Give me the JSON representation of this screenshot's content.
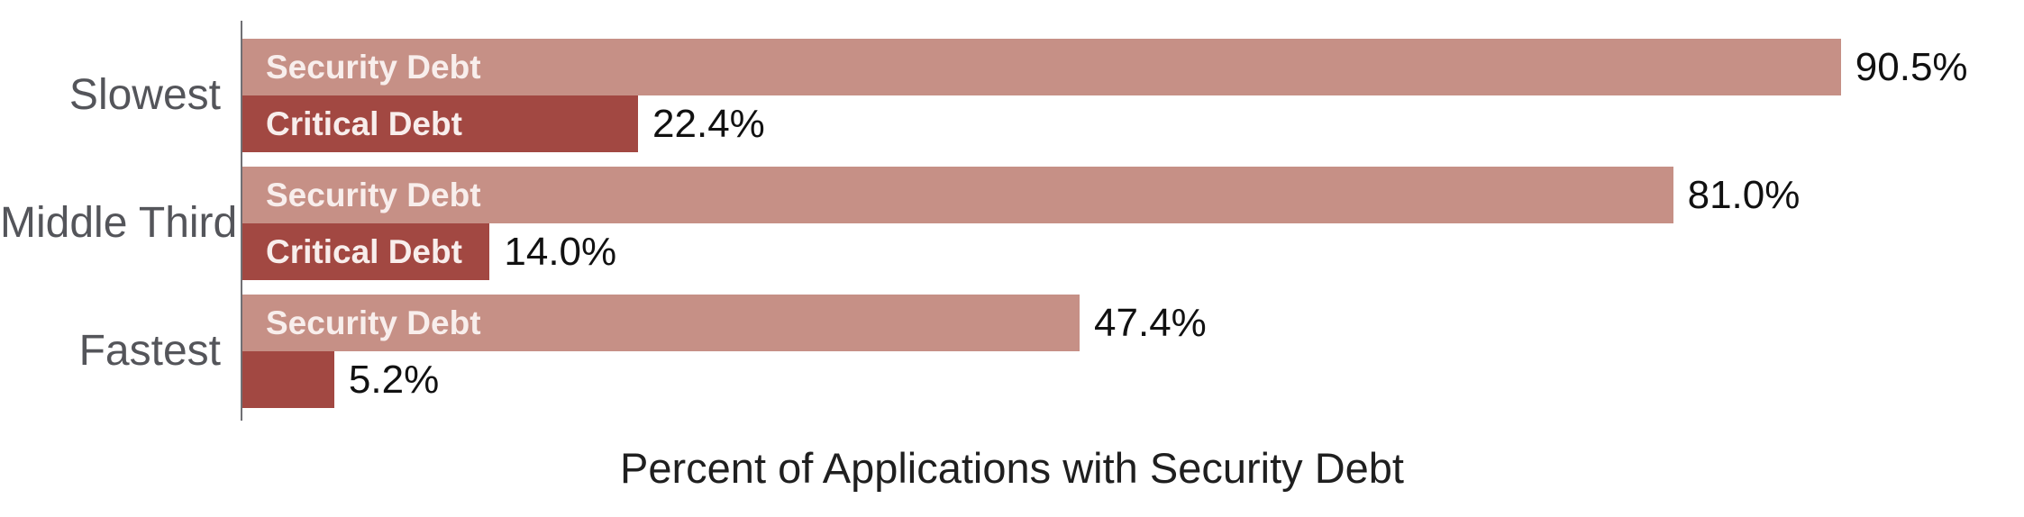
{
  "chart_data": {
    "type": "bar",
    "orientation": "horizontal",
    "title": "Percent of Applications with Security Debt",
    "categories": [
      "Slowest",
      "Middle Third",
      "Fastest"
    ],
    "series": [
      {
        "name": "Security Debt",
        "values": [
          90.5,
          81.0,
          47.4
        ],
        "value_labels": [
          "90.5%",
          "81.0%",
          "47.4%"
        ],
        "inner_labels": [
          "Security Debt",
          "Security Debt",
          "Security Debt"
        ],
        "color": "#C69086"
      },
      {
        "name": "Critical Debt",
        "values": [
          22.4,
          14.0,
          5.2
        ],
        "value_labels": [
          "22.4%",
          "14.0%",
          "5.2%"
        ],
        "inner_labels": [
          "Critical Debt",
          "Critical Debt",
          ""
        ],
        "color": "#A24842"
      }
    ],
    "xlim": [
      0,
      100
    ],
    "legend": "none",
    "gridlines": false
  },
  "colors": {
    "security_bar": "#C69086",
    "critical_bar": "#A24842",
    "inner_label_text": "#F8EEEC",
    "value_label_text": "#111111",
    "category_label_text": "#54555A",
    "title_text": "#1F1F1F",
    "axis_line": "#707074",
    "background": "#FFFFFF"
  }
}
